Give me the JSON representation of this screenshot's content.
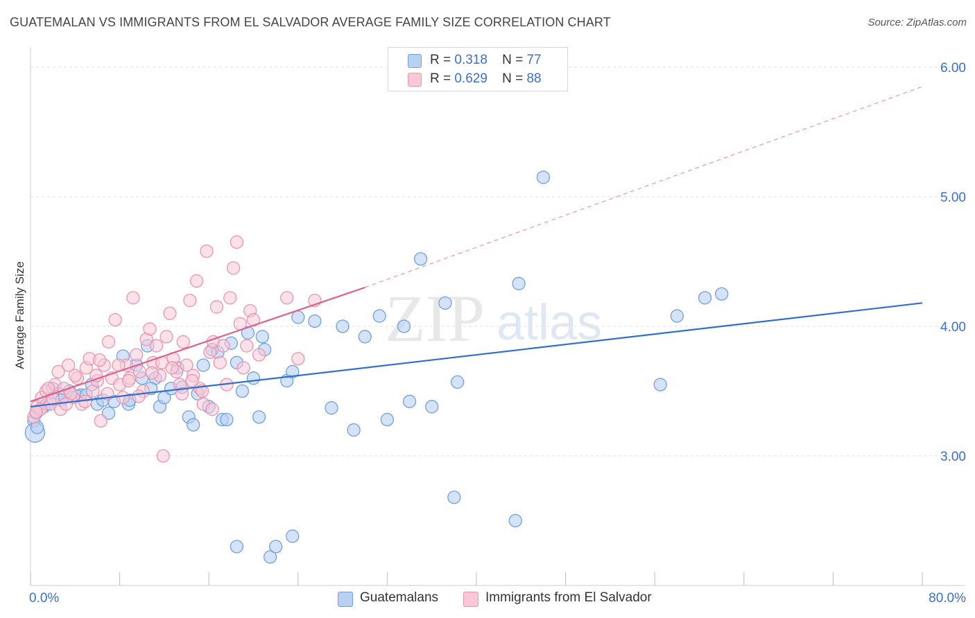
{
  "header": {
    "title": "GUATEMALAN VS IMMIGRANTS FROM EL SALVADOR AVERAGE FAMILY SIZE CORRELATION CHART",
    "source": "Source: ZipAtlas.com"
  },
  "legend": {
    "rows": [
      {
        "r_label": "R =",
        "r_value": "0.318",
        "n_label": "N =",
        "n_value": "77"
      },
      {
        "r_label": "R =",
        "r_value": "0.629",
        "n_label": "N =",
        "n_value": "88"
      }
    ]
  },
  "bottom_legend": {
    "items": [
      "Guatemalans",
      "Immigrants from El Salvador"
    ]
  },
  "watermark": {
    "zip": "ZIP",
    "atlas": "atlas"
  },
  "colors": {
    "blue_fill": "#b8d0f2",
    "blue_stroke": "#6f9fe0",
    "blue_line": "#2f6fcf",
    "pink_fill": "#f8c8d6",
    "pink_stroke": "#ec93af",
    "pink_line": "#e0608c",
    "axis_text": "#3a6fcc",
    "grid": "#dddddd"
  },
  "chart_data": {
    "type": "scatter",
    "title": "GUATEMALAN VS IMMIGRANTS FROM EL SALVADOR AVERAGE FAMILY SIZE CORRELATION CHART",
    "xlabel": "",
    "ylabel": "Average Family Size",
    "xlim": [
      0,
      80
    ],
    "ylim": [
      2.0,
      6.0
    ],
    "x_tick_labels": [
      "0.0%",
      "80.0%"
    ],
    "y_ticks": [
      3.0,
      4.0,
      5.0,
      6.0
    ],
    "y_tick_labels": [
      "3.00",
      "4.00",
      "5.00",
      "6.00"
    ],
    "grid": true,
    "legend_position": "top-center",
    "series": [
      {
        "name": "Guatemalans",
        "color": "#6f9fe0",
        "R": 0.318,
        "N": 77,
        "trend": {
          "x0": 0,
          "y0": 3.38,
          "x1": 80,
          "y1": 4.18
        },
        "points": [
          [
            0.3,
            3.27
          ],
          [
            0.5,
            3.33
          ],
          [
            0.4,
            3.18
          ],
          [
            1.2,
            3.38
          ],
          [
            2.0,
            3.52
          ],
          [
            2.5,
            3.48
          ],
          [
            3.0,
            3.46
          ],
          [
            3.5,
            3.5
          ],
          [
            4.5,
            3.47
          ],
          [
            5.5,
            3.55
          ],
          [
            6.0,
            3.4
          ],
          [
            6.5,
            3.43
          ],
          [
            7.0,
            3.33
          ],
          [
            7.5,
            3.42
          ],
          [
            8.3,
            3.77
          ],
          [
            8.8,
            3.4
          ],
          [
            9.5,
            3.7
          ],
          [
            10.0,
            3.6
          ],
          [
            10.5,
            3.85
          ],
          [
            11.2,
            3.6
          ],
          [
            11.6,
            3.38
          ],
          [
            12.0,
            3.45
          ],
          [
            12.6,
            3.52
          ],
          [
            13.2,
            3.68
          ],
          [
            13.6,
            3.53
          ],
          [
            14.2,
            3.3
          ],
          [
            14.6,
            3.24
          ],
          [
            15.0,
            3.48
          ],
          [
            15.5,
            3.7
          ],
          [
            16.0,
            3.38
          ],
          [
            16.3,
            3.82
          ],
          [
            16.8,
            3.8
          ],
          [
            17.2,
            3.28
          ],
          [
            17.6,
            3.28
          ],
          [
            18.0,
            3.87
          ],
          [
            18.5,
            3.72
          ],
          [
            19.0,
            3.5
          ],
          [
            19.5,
            3.95
          ],
          [
            20.0,
            3.6
          ],
          [
            20.5,
            3.3
          ],
          [
            20.8,
            3.92
          ],
          [
            21.0,
            3.82
          ],
          [
            21.5,
            2.22
          ],
          [
            22.0,
            2.3
          ],
          [
            23.0,
            3.58
          ],
          [
            23.5,
            3.65
          ],
          [
            24.0,
            4.07
          ],
          [
            25.5,
            4.04
          ],
          [
            27.0,
            3.37
          ],
          [
            28.0,
            4.0
          ],
          [
            29.0,
            3.2
          ],
          [
            30.0,
            3.92
          ],
          [
            31.3,
            4.08
          ],
          [
            32.0,
            3.28
          ],
          [
            33.5,
            4.0
          ],
          [
            34.0,
            3.42
          ],
          [
            35.0,
            4.52
          ],
          [
            36.0,
            3.38
          ],
          [
            37.2,
            4.18
          ],
          [
            38.0,
            2.68
          ],
          [
            38.3,
            3.57
          ],
          [
            43.5,
            2.5
          ],
          [
            43.8,
            4.33
          ],
          [
            46.0,
            5.15
          ],
          [
            56.5,
            3.55
          ],
          [
            58.0,
            4.08
          ],
          [
            60.5,
            4.22
          ],
          [
            62.0,
            4.25
          ],
          [
            18.5,
            2.3
          ],
          [
            23.5,
            2.38
          ],
          [
            8.9,
            3.43
          ],
          [
            4.2,
            3.46
          ],
          [
            1.5,
            3.4
          ],
          [
            5.0,
            3.47
          ],
          [
            10.8,
            3.52
          ],
          [
            2.8,
            3.43
          ],
          [
            0.6,
            3.22
          ]
        ]
      },
      {
        "name": "Immigrants from El Salvador",
        "color": "#ec93af",
        "R": 0.629,
        "N": 88,
        "trend": {
          "x0": 0,
          "y0": 3.42,
          "x1": 30,
          "y1": 4.3,
          "dash_x1": 80,
          "dash_y1": 5.85
        },
        "points": [
          [
            0.3,
            3.3
          ],
          [
            0.6,
            3.38
          ],
          [
            1.0,
            3.45
          ],
          [
            1.4,
            3.5
          ],
          [
            1.8,
            3.4
          ],
          [
            2.2,
            3.55
          ],
          [
            2.5,
            3.65
          ],
          [
            3.0,
            3.52
          ],
          [
            3.4,
            3.7
          ],
          [
            3.8,
            3.45
          ],
          [
            4.2,
            3.6
          ],
          [
            4.6,
            3.4
          ],
          [
            5.0,
            3.68
          ],
          [
            5.3,
            3.75
          ],
          [
            5.6,
            3.5
          ],
          [
            6.0,
            3.58
          ],
          [
            6.3,
            3.27
          ],
          [
            6.6,
            3.7
          ],
          [
            7.0,
            3.88
          ],
          [
            7.3,
            3.6
          ],
          [
            7.6,
            4.05
          ],
          [
            8.0,
            3.55
          ],
          [
            8.3,
            3.45
          ],
          [
            8.6,
            3.7
          ],
          [
            8.9,
            3.6
          ],
          [
            9.2,
            4.22
          ],
          [
            9.5,
            3.78
          ],
          [
            9.8,
            3.65
          ],
          [
            10.1,
            3.5
          ],
          [
            10.4,
            3.9
          ],
          [
            10.7,
            3.98
          ],
          [
            11.0,
            3.72
          ],
          [
            11.3,
            3.85
          ],
          [
            11.6,
            3.62
          ],
          [
            11.9,
            3.0
          ],
          [
            12.2,
            3.92
          ],
          [
            12.5,
            4.1
          ],
          [
            12.8,
            3.75
          ],
          [
            13.1,
            3.65
          ],
          [
            13.4,
            3.55
          ],
          [
            13.7,
            3.88
          ],
          [
            14.0,
            3.7
          ],
          [
            14.3,
            4.2
          ],
          [
            14.6,
            3.62
          ],
          [
            14.9,
            4.35
          ],
          [
            15.2,
            3.52
          ],
          [
            15.5,
            3.4
          ],
          [
            15.8,
            4.58
          ],
          [
            16.1,
            3.8
          ],
          [
            16.4,
            3.88
          ],
          [
            16.7,
            4.15
          ],
          [
            17.0,
            3.72
          ],
          [
            17.3,
            3.85
          ],
          [
            17.6,
            3.55
          ],
          [
            17.9,
            4.22
          ],
          [
            18.2,
            4.45
          ],
          [
            18.5,
            4.65
          ],
          [
            18.8,
            4.02
          ],
          [
            19.1,
            3.68
          ],
          [
            19.4,
            3.85
          ],
          [
            19.7,
            4.12
          ],
          [
            20.0,
            4.05
          ],
          [
            20.5,
            3.78
          ],
          [
            23.0,
            4.22
          ],
          [
            24.0,
            3.75
          ],
          [
            25.5,
            4.2
          ],
          [
            0.9,
            3.36
          ],
          [
            1.6,
            3.52
          ],
          [
            2.7,
            3.36
          ],
          [
            3.6,
            3.48
          ],
          [
            4.9,
            3.42
          ],
          [
            5.9,
            3.62
          ],
          [
            6.9,
            3.48
          ],
          [
            7.9,
            3.7
          ],
          [
            8.8,
            3.58
          ],
          [
            9.7,
            3.46
          ],
          [
            10.9,
            3.64
          ],
          [
            11.8,
            3.72
          ],
          [
            12.7,
            3.68
          ],
          [
            13.6,
            3.48
          ],
          [
            14.5,
            3.58
          ],
          [
            15.4,
            3.5
          ],
          [
            16.3,
            3.36
          ],
          [
            0.5,
            3.34
          ],
          [
            2.0,
            3.44
          ],
          [
            3.2,
            3.4
          ],
          [
            4.0,
            3.62
          ],
          [
            6.2,
            3.74
          ]
        ]
      }
    ]
  }
}
